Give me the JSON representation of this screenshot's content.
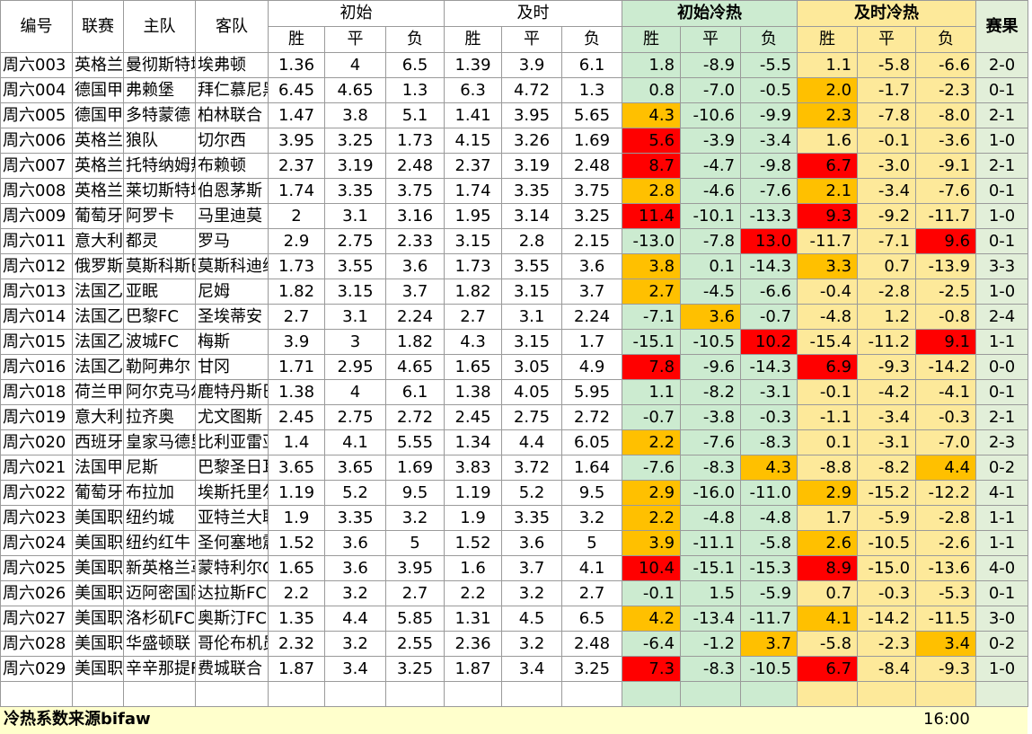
{
  "header": {
    "col_id": "编号",
    "col_league": "联赛",
    "col_home": "主队",
    "col_away": "客队",
    "group_initial": "初始",
    "group_current": "及时",
    "group_initial_heat": "初始冷热",
    "group_current_heat": "及时冷热",
    "col_result": "赛果",
    "sub_win": "胜",
    "sub_draw": "平",
    "sub_loss": "负"
  },
  "colors": {
    "heat_green": "#ccebd0",
    "heat_yellow": "#fde99a",
    "highlight_orange": "#ffc000",
    "highlight_red": "#ff0000",
    "footer_bg": "#ffffcc"
  },
  "rows": [
    {
      "id": "周六003",
      "league": "英格兰超",
      "home": "曼彻斯特城",
      "away": "埃弗顿",
      "init": [
        "1.36",
        "4",
        "6.5"
      ],
      "cur": [
        "1.39",
        "3.9",
        "6.1"
      ],
      "iheat": [
        "1.8",
        "-8.9",
        "-5.5"
      ],
      "cheat": [
        "1.1",
        "-5.8",
        "-6.6"
      ],
      "ihl": [
        "",
        "",
        ""
      ],
      "chl": [
        "",
        "",
        ""
      ],
      "result": "2-0"
    },
    {
      "id": "周六004",
      "league": "德国甲级",
      "home": "弗赖堡",
      "away": "拜仁慕尼黑",
      "init": [
        "6.45",
        "4.65",
        "1.3"
      ],
      "cur": [
        "6.3",
        "4.72",
        "1.3"
      ],
      "iheat": [
        "0.8",
        "-7.0",
        "-0.5"
      ],
      "cheat": [
        "2.0",
        "-1.7",
        "-2.3"
      ],
      "ihl": [
        "",
        "",
        ""
      ],
      "chl": [
        "orange",
        "",
        ""
      ],
      "result": "0-1"
    },
    {
      "id": "周六005",
      "league": "德国甲级",
      "home": "多特蒙德",
      "away": "柏林联合",
      "init": [
        "1.47",
        "3.8",
        "5.1"
      ],
      "cur": [
        "1.41",
        "3.95",
        "5.65"
      ],
      "iheat": [
        "4.3",
        "-10.6",
        "-9.9"
      ],
      "cheat": [
        "2.3",
        "-7.8",
        "-8.0"
      ],
      "ihl": [
        "orange",
        "",
        ""
      ],
      "chl": [
        "orange",
        "",
        ""
      ],
      "result": "2-1"
    },
    {
      "id": "周六006",
      "league": "英格兰超",
      "home": "狼队",
      "away": "切尔西",
      "init": [
        "3.95",
        "3.25",
        "1.73"
      ],
      "cur": [
        "4.15",
        "3.26",
        "1.69"
      ],
      "iheat": [
        "5.6",
        "-3.9",
        "-3.4"
      ],
      "cheat": [
        "1.6",
        "-0.1",
        "-3.6"
      ],
      "ihl": [
        "red",
        "",
        ""
      ],
      "chl": [
        "",
        "",
        ""
      ],
      "result": "1-0"
    },
    {
      "id": "周六007",
      "league": "英格兰超",
      "home": "托特纳姆热刺",
      "away": "布赖顿",
      "init": [
        "2.37",
        "3.19",
        "2.48"
      ],
      "cur": [
        "2.37",
        "3.19",
        "2.48"
      ],
      "iheat": [
        "8.7",
        "-4.7",
        "-9.8"
      ],
      "cheat": [
        "6.7",
        "-3.0",
        "-9.1"
      ],
      "ihl": [
        "red",
        "",
        ""
      ],
      "chl": [
        "red",
        "",
        ""
      ],
      "result": "2-1"
    },
    {
      "id": "周六008",
      "league": "英格兰超",
      "home": "莱切斯特城",
      "away": "伯恩茅斯",
      "init": [
        "1.74",
        "3.35",
        "3.75"
      ],
      "cur": [
        "1.74",
        "3.35",
        "3.75"
      ],
      "iheat": [
        "2.8",
        "-4.6",
        "-7.6"
      ],
      "cheat": [
        "2.1",
        "-3.4",
        "-7.6"
      ],
      "ihl": [
        "orange",
        "",
        ""
      ],
      "chl": [
        "orange",
        "",
        ""
      ],
      "result": "0-1"
    },
    {
      "id": "周六009",
      "league": "葡萄牙超",
      "home": "阿罗卡",
      "away": "马里迪莫",
      "init": [
        "2",
        "3.1",
        "3.16"
      ],
      "cur": [
        "1.95",
        "3.14",
        "3.25"
      ],
      "iheat": [
        "11.4",
        "-10.1",
        "-13.3"
      ],
      "cheat": [
        "9.3",
        "-9.2",
        "-11.7"
      ],
      "ihl": [
        "red",
        "",
        ""
      ],
      "chl": [
        "red",
        "",
        ""
      ],
      "result": "1-0"
    },
    {
      "id": "周六011",
      "league": "意大利甲",
      "home": "都灵",
      "away": "罗马",
      "init": [
        "2.9",
        "2.75",
        "2.33"
      ],
      "cur": [
        "3.15",
        "2.8",
        "2.15"
      ],
      "iheat": [
        "-13.0",
        "-7.8",
        "13.0"
      ],
      "cheat": [
        "-11.7",
        "-7.1",
        "9.6"
      ],
      "ihl": [
        "",
        "",
        "red"
      ],
      "chl": [
        "",
        "",
        "red"
      ],
      "result": "0-1"
    },
    {
      "id": "周六012",
      "league": "俄罗斯超",
      "home": "莫斯科斯巴达",
      "away": "莫斯科迪纳摩",
      "init": [
        "1.73",
        "3.55",
        "3.6"
      ],
      "cur": [
        "1.73",
        "3.55",
        "3.6"
      ],
      "iheat": [
        "3.8",
        "0.1",
        "-14.3"
      ],
      "cheat": [
        "3.3",
        "0.7",
        "-13.9"
      ],
      "ihl": [
        "orange",
        "",
        ""
      ],
      "chl": [
        "orange",
        "",
        ""
      ],
      "result": "3-3"
    },
    {
      "id": "周六013",
      "league": "法国乙级",
      "home": "亚眠",
      "away": "尼姆",
      "init": [
        "1.82",
        "3.15",
        "3.7"
      ],
      "cur": [
        "1.82",
        "3.15",
        "3.7"
      ],
      "iheat": [
        "2.7",
        "-4.5",
        "-6.6"
      ],
      "cheat": [
        "-0.4",
        "-2.8",
        "-2.5"
      ],
      "ihl": [
        "orange",
        "",
        ""
      ],
      "chl": [
        "",
        "",
        ""
      ],
      "result": "1-0"
    },
    {
      "id": "周六014",
      "league": "法国乙级",
      "home": "巴黎FC",
      "away": "圣埃蒂安",
      "init": [
        "2.7",
        "3.1",
        "2.24"
      ],
      "cur": [
        "2.7",
        "3.1",
        "2.24"
      ],
      "iheat": [
        "-7.1",
        "3.6",
        "-0.7"
      ],
      "cheat": [
        "-4.8",
        "1.2",
        "-0.8"
      ],
      "ihl": [
        "",
        "orange",
        ""
      ],
      "chl": [
        "",
        "",
        ""
      ],
      "result": "2-4"
    },
    {
      "id": "周六015",
      "league": "法国乙级",
      "home": "波城FC",
      "away": "梅斯",
      "init": [
        "3.9",
        "3",
        "1.82"
      ],
      "cur": [
        "4.3",
        "3.15",
        "1.7"
      ],
      "iheat": [
        "-15.1",
        "-10.5",
        "10.2"
      ],
      "cheat": [
        "-15.4",
        "-11.2",
        "9.1"
      ],
      "ihl": [
        "",
        "",
        "red"
      ],
      "chl": [
        "",
        "",
        "red"
      ],
      "result": "1-1"
    },
    {
      "id": "周六016",
      "league": "法国乙级",
      "home": "勒阿弗尔",
      "away": "甘冈",
      "init": [
        "1.71",
        "2.95",
        "4.65"
      ],
      "cur": [
        "1.65",
        "3.05",
        "4.9"
      ],
      "iheat": [
        "7.8",
        "-9.6",
        "-14.3"
      ],
      "cheat": [
        "6.9",
        "-9.3",
        "-14.2"
      ],
      "ihl": [
        "red",
        "",
        ""
      ],
      "chl": [
        "red",
        "",
        ""
      ],
      "result": "0-0"
    },
    {
      "id": "周六018",
      "league": "荷兰甲级",
      "home": "阿尔克马尔",
      "away": "鹿特丹斯巴达",
      "init": [
        "1.38",
        "4",
        "6.1"
      ],
      "cur": [
        "1.38",
        "4.05",
        "5.95"
      ],
      "iheat": [
        "1.1",
        "-8.2",
        "-3.1"
      ],
      "cheat": [
        "-0.1",
        "-4.2",
        "-4.1"
      ],
      "ihl": [
        "",
        "",
        ""
      ],
      "chl": [
        "",
        "",
        ""
      ],
      "result": "0-1"
    },
    {
      "id": "周六019",
      "league": "意大利甲",
      "home": "拉齐奥",
      "away": "尤文图斯",
      "init": [
        "2.45",
        "2.75",
        "2.72"
      ],
      "cur": [
        "2.45",
        "2.75",
        "2.72"
      ],
      "iheat": [
        "-0.7",
        "-3.8",
        "-0.3"
      ],
      "cheat": [
        "-1.1",
        "-3.4",
        "-0.3"
      ],
      "ihl": [
        "",
        "",
        ""
      ],
      "chl": [
        "",
        "",
        ""
      ],
      "result": "2-1"
    },
    {
      "id": "周六020",
      "league": "西班牙甲",
      "home": "皇家马德里",
      "away": "比利亚雷亚尔",
      "init": [
        "1.4",
        "4.1",
        "5.55"
      ],
      "cur": [
        "1.34",
        "4.4",
        "6.05"
      ],
      "iheat": [
        "2.2",
        "-7.6",
        "-8.3"
      ],
      "cheat": [
        "0.1",
        "-3.1",
        "-7.0"
      ],
      "ihl": [
        "orange",
        "",
        ""
      ],
      "chl": [
        "",
        "",
        ""
      ],
      "result": "2-3"
    },
    {
      "id": "周六021",
      "league": "法国甲级",
      "home": "尼斯",
      "away": "巴黎圣日耳曼",
      "init": [
        "3.65",
        "3.65",
        "1.69"
      ],
      "cur": [
        "3.83",
        "3.72",
        "1.64"
      ],
      "iheat": [
        "-7.6",
        "-8.3",
        "4.3"
      ],
      "cheat": [
        "-8.8",
        "-8.2",
        "4.4"
      ],
      "ihl": [
        "",
        "",
        "orange"
      ],
      "chl": [
        "",
        "",
        "orange"
      ],
      "result": "0-2"
    },
    {
      "id": "周六022",
      "league": "葡萄牙超",
      "home": "布拉加",
      "away": "埃斯托里尔",
      "init": [
        "1.19",
        "5.2",
        "9.5"
      ],
      "cur": [
        "1.19",
        "5.2",
        "9.5"
      ],
      "iheat": [
        "2.9",
        "-16.0",
        "-11.0"
      ],
      "cheat": [
        "2.9",
        "-15.2",
        "-12.2"
      ],
      "ihl": [
        "orange",
        "",
        ""
      ],
      "chl": [
        "orange",
        "",
        ""
      ],
      "result": "4-1"
    },
    {
      "id": "周六023",
      "league": "美国职业",
      "home": "纽约城",
      "away": "亚特兰大联",
      "init": [
        "1.9",
        "3.35",
        "3.2"
      ],
      "cur": [
        "1.9",
        "3.35",
        "3.2"
      ],
      "iheat": [
        "2.2",
        "-4.8",
        "-4.8"
      ],
      "cheat": [
        "1.7",
        "-5.9",
        "-2.8"
      ],
      "ihl": [
        "orange",
        "",
        ""
      ],
      "chl": [
        "",
        "",
        ""
      ],
      "result": "1-1"
    },
    {
      "id": "周六024",
      "league": "美国职业",
      "home": "纽约红牛",
      "away": "圣何塞地震",
      "init": [
        "1.52",
        "3.6",
        "5"
      ],
      "cur": [
        "1.52",
        "3.6",
        "5"
      ],
      "iheat": [
        "3.9",
        "-11.1",
        "-5.8"
      ],
      "cheat": [
        "2.6",
        "-10.5",
        "-2.6"
      ],
      "ihl": [
        "orange",
        "",
        ""
      ],
      "chl": [
        "orange",
        "",
        ""
      ],
      "result": "1-1"
    },
    {
      "id": "周六025",
      "league": "美国职业",
      "home": "新英格兰革命",
      "away": "蒙特利尔CF",
      "init": [
        "1.65",
        "3.6",
        "3.95"
      ],
      "cur": [
        "1.6",
        "3.7",
        "4.1"
      ],
      "iheat": [
        "10.4",
        "-15.1",
        "-15.3"
      ],
      "cheat": [
        "8.9",
        "-15.0",
        "-13.6"
      ],
      "ihl": [
        "red",
        "",
        ""
      ],
      "chl": [
        "red",
        "",
        ""
      ],
      "result": "4-0"
    },
    {
      "id": "周六026",
      "league": "美国职业",
      "home": "迈阿密国际",
      "away": "达拉斯FC",
      "init": [
        "2.2",
        "3.2",
        "2.7"
      ],
      "cur": [
        "2.2",
        "3.2",
        "2.7"
      ],
      "iheat": [
        "-0.1",
        "1.5",
        "-5.9"
      ],
      "cheat": [
        "0.7",
        "-0.3",
        "-5.3"
      ],
      "ihl": [
        "",
        "",
        ""
      ],
      "chl": [
        "",
        "",
        ""
      ],
      "result": "0-1"
    },
    {
      "id": "周六027",
      "league": "美国职业",
      "home": "洛杉矶FC",
      "away": "奥斯汀FC",
      "init": [
        "1.35",
        "4.4",
        "5.85"
      ],
      "cur": [
        "1.31",
        "4.5",
        "6.5"
      ],
      "iheat": [
        "4.2",
        "-13.4",
        "-11.7"
      ],
      "cheat": [
        "4.1",
        "-14.2",
        "-11.5"
      ],
      "ihl": [
        "orange",
        "",
        ""
      ],
      "chl": [
        "orange",
        "",
        ""
      ],
      "result": "3-0"
    },
    {
      "id": "周六028",
      "league": "美国职业",
      "home": "华盛顿联",
      "away": "哥伦布机员",
      "init": [
        "2.32",
        "3.2",
        "2.55"
      ],
      "cur": [
        "2.36",
        "3.2",
        "2.48"
      ],
      "iheat": [
        "-6.4",
        "-1.2",
        "3.7"
      ],
      "cheat": [
        "-5.8",
        "-2.3",
        "3.4"
      ],
      "ihl": [
        "",
        "",
        "orange"
      ],
      "chl": [
        "",
        "",
        "orange"
      ],
      "result": "0-2"
    },
    {
      "id": "周六029",
      "league": "美国职业",
      "home": "辛辛那提FC",
      "away": "费城联合",
      "init": [
        "1.87",
        "3.4",
        "3.25"
      ],
      "cur": [
        "1.87",
        "3.4",
        "3.25"
      ],
      "iheat": [
        "7.3",
        "-8.3",
        "-10.5"
      ],
      "cheat": [
        "6.7",
        "-8.4",
        "-9.3"
      ],
      "ihl": [
        "red",
        "",
        ""
      ],
      "chl": [
        "red",
        "",
        ""
      ],
      "result": "1-0"
    }
  ],
  "footer": {
    "note": "冷热系数来源bifaw",
    "time": "16:00"
  }
}
